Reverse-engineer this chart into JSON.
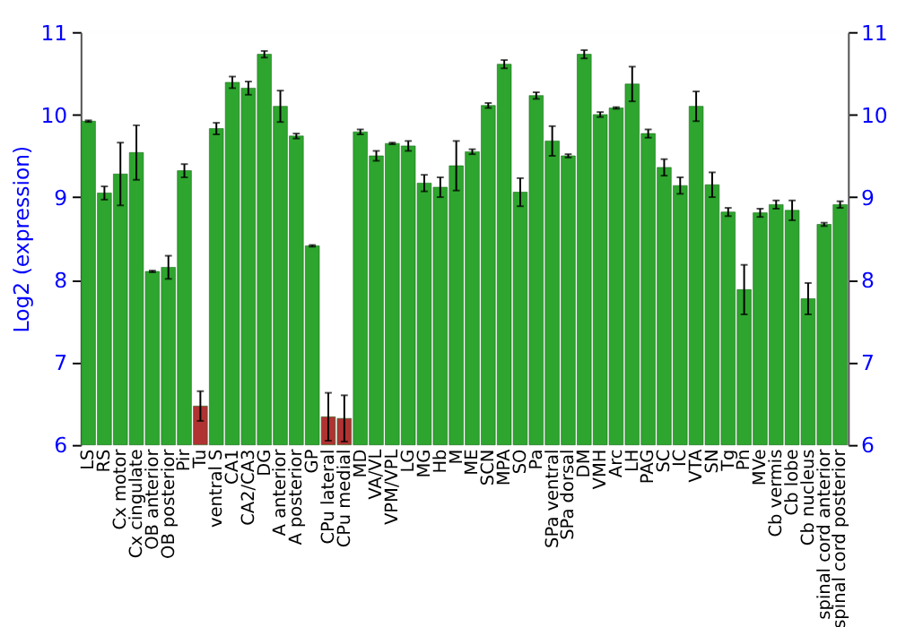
{
  "chart_data": {
    "type": "bar",
    "ylabel": "Log2 (expression)",
    "categories": [
      "LS",
      "RS",
      "Cx motor",
      "Cx cingulate",
      "OB anterior",
      "OB posterior",
      "Pir",
      "Tu",
      "ventral S",
      "CA1",
      "CA2/CA3",
      "DG",
      "A anterior",
      "A posterior",
      "GP",
      "CPu lateral",
      "CPu medial",
      "MD",
      "VA/VL",
      "VPM/VPL",
      "LG",
      "MG",
      "Hb",
      "M",
      "ME",
      "SCN",
      "MPA",
      "SO",
      "Pa",
      "SPa ventral",
      "SPa dorsal",
      "DM",
      "VMH",
      "Arc",
      "LH",
      "PAG",
      "SC",
      "IC",
      "VTA",
      "SN",
      "Tg",
      "Pn",
      "MVe",
      "Cb vermis",
      "Cb lobe",
      "Cb nucleus",
      "spinal cord anterior",
      "spinal cord posterior"
    ],
    "values": [
      9.92,
      9.05,
      9.28,
      9.54,
      8.1,
      8.15,
      9.32,
      6.47,
      9.83,
      10.39,
      10.32,
      10.73,
      10.1,
      9.74,
      8.41,
      6.34,
      6.32,
      9.79,
      9.5,
      9.65,
      9.62,
      9.17,
      9.12,
      9.38,
      9.55,
      10.11,
      10.61,
      9.06,
      10.23,
      9.68,
      9.5,
      10.73,
      10.0,
      10.08,
      10.37,
      9.77,
      9.36,
      9.14,
      10.1,
      9.15,
      8.82,
      7.88,
      8.81,
      8.91,
      8.84,
      7.77,
      8.67,
      8.91
    ],
    "errors": [
      0.01,
      0.08,
      0.38,
      0.33,
      0.01,
      0.14,
      0.08,
      0.18,
      0.07,
      0.07,
      0.08,
      0.04,
      0.19,
      0.03,
      0.01,
      0.29,
      0.28,
      0.03,
      0.06,
      0.01,
      0.06,
      0.1,
      0.12,
      0.3,
      0.03,
      0.03,
      0.05,
      0.17,
      0.04,
      0.18,
      0.02,
      0.05,
      0.03,
      0.01,
      0.21,
      0.05,
      0.1,
      0.1,
      0.18,
      0.15,
      0.05,
      0.3,
      0.05,
      0.05,
      0.12,
      0.19,
      0.02,
      0.04
    ],
    "colors": [
      "#2ea52e",
      "#2ea52e",
      "#2ea52e",
      "#2ea52e",
      "#2ea52e",
      "#2ea52e",
      "#2ea52e",
      "#b03232",
      "#2ea52e",
      "#2ea52e",
      "#2ea52e",
      "#2ea52e",
      "#2ea52e",
      "#2ea52e",
      "#2ea52e",
      "#b03232",
      "#b03232",
      "#2ea52e",
      "#2ea52e",
      "#2ea52e",
      "#2ea52e",
      "#2ea52e",
      "#2ea52e",
      "#2ea52e",
      "#2ea52e",
      "#2ea52e",
      "#2ea52e",
      "#2ea52e",
      "#2ea52e",
      "#2ea52e",
      "#2ea52e",
      "#2ea52e",
      "#2ea52e",
      "#2ea52e",
      "#2ea52e",
      "#2ea52e",
      "#2ea52e",
      "#2ea52e",
      "#2ea52e",
      "#2ea52e",
      "#2ea52e",
      "#2ea52e",
      "#2ea52e",
      "#2ea52e",
      "#2ea52e",
      "#2ea52e",
      "#2ea52e",
      "#2ea52e"
    ],
    "ylim": [
      6,
      11
    ],
    "yticks": [
      6,
      7,
      8,
      9,
      10,
      11
    ],
    "y2lim": [
      6,
      11
    ],
    "y2ticks": [
      6,
      7,
      8,
      9,
      10,
      11
    ],
    "grid": "y"
  }
}
